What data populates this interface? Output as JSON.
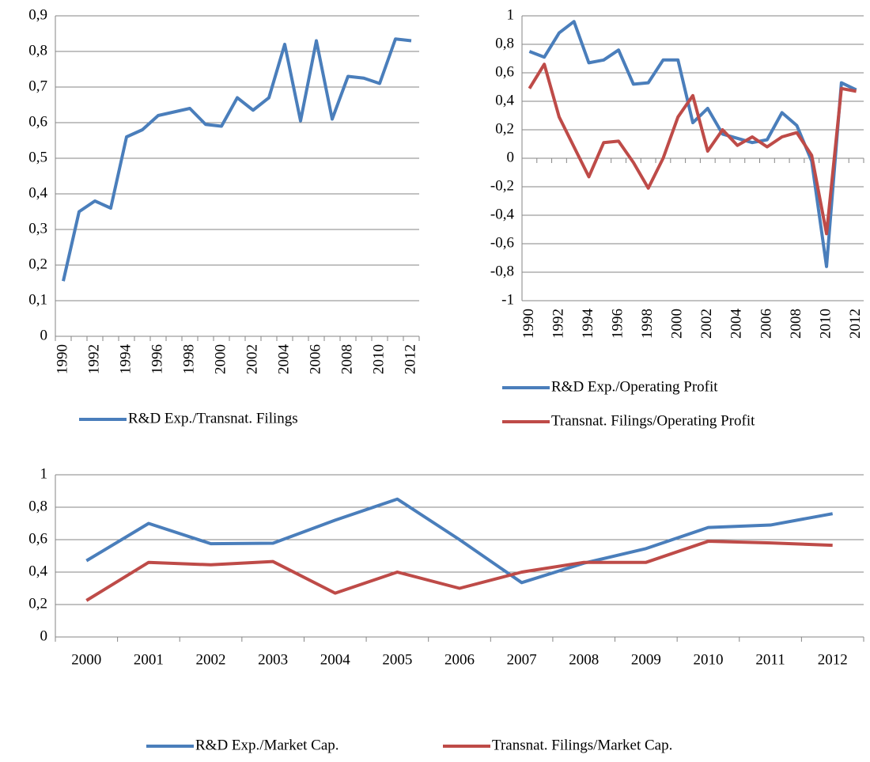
{
  "chart_data": [
    {
      "type": "line",
      "categories": [
        1990,
        null,
        1992,
        null,
        1994,
        null,
        1996,
        null,
        1998,
        null,
        2000,
        null,
        2002,
        null,
        2004,
        null,
        2006,
        null,
        2008,
        null,
        2010,
        null,
        2012
      ],
      "series": [
        {
          "name": "R&D Exp./Transnat. Filings",
          "color": "#4a7ebb",
          "values": [
            0.155,
            0.35,
            0.38,
            0.36,
            0.56,
            0.58,
            0.62,
            0.63,
            0.64,
            0.595,
            0.59,
            0.67,
            0.635,
            0.67,
            0.82,
            0.605,
            0.83,
            0.61,
            0.73,
            0.725,
            0.71,
            0.835,
            0.83
          ]
        }
      ],
      "ylim": [
        0,
        0.9
      ],
      "yticks": [
        0,
        {
          "value": 0.1,
          "label": "0,1"
        },
        {
          "value": 0.2,
          "label": "0,2"
        },
        {
          "value": 0.3,
          "label": "0,3"
        },
        {
          "value": 0.4,
          "label": "0,4"
        },
        {
          "value": 0.5,
          "label": "0,5"
        },
        {
          "value": 0.6,
          "label": "0,6"
        },
        {
          "value": 0.7,
          "label": "0,7"
        },
        {
          "value": 0.8,
          "label": "0,8"
        },
        {
          "value": 0.9,
          "label": "0,9"
        }
      ],
      "grid": true
    },
    {
      "type": "line",
      "categories": [
        1990,
        null,
        1992,
        null,
        1994,
        null,
        1996,
        null,
        1998,
        null,
        2000,
        null,
        2002,
        null,
        2004,
        null,
        2006,
        null,
        2008,
        null,
        2010,
        null,
        2012
      ],
      "series": [
        {
          "name": "R&D Exp./Operating Profit",
          "color": "#4a7ebb",
          "values": [
            0.75,
            0.71,
            0.88,
            0.96,
            0.67,
            0.69,
            0.76,
            0.52,
            0.53,
            0.69,
            0.69,
            0.25,
            0.35,
            0.17,
            0.14,
            0.11,
            0.13,
            0.32,
            0.23,
            -0.02,
            -0.76,
            0.53,
            0.48
          ]
        },
        {
          "name": "Transnat. Filings/Operating Profit",
          "color": "#be4b48",
          "values": [
            0.49,
            0.66,
            0.29,
            0.08,
            -0.13,
            0.11,
            0.12,
            -0.03,
            -0.21,
            0.0,
            0.29,
            0.44,
            0.05,
            0.2,
            0.09,
            0.15,
            0.08,
            0.15,
            0.18,
            0.02,
            -0.53,
            0.49,
            0.47
          ]
        }
      ],
      "ylim": [
        -1,
        1
      ],
      "yticks": [
        -1,
        {
          "value": -0.8,
          "label": "-0,8"
        },
        {
          "value": -0.6,
          "label": "-0,6"
        },
        {
          "value": -0.4,
          "label": "-0,4"
        },
        {
          "value": -0.2,
          "label": "-0,2"
        },
        0,
        {
          "value": 0.2,
          "label": "0,2"
        },
        {
          "value": 0.4,
          "label": "0,4"
        },
        {
          "value": 0.6,
          "label": "0,6"
        },
        {
          "value": 0.8,
          "label": "0,8"
        },
        1
      ],
      "grid": true
    },
    {
      "type": "line",
      "categories": [
        2000,
        2001,
        2002,
        2003,
        2004,
        2005,
        2006,
        2007,
        2008,
        2009,
        2010,
        2011,
        2012
      ],
      "series": [
        {
          "name": "R&D Exp./Market Cap.",
          "color": "#4a7ebb",
          "values": [
            0.47,
            0.7,
            0.575,
            0.578,
            0.72,
            0.85,
            0.6,
            0.335,
            0.455,
            0.545,
            0.675,
            0.69,
            0.76
          ]
        },
        {
          "name": "Transnat. Filings/Market Cap.",
          "color": "#be4b48",
          "values": [
            0.225,
            0.46,
            0.445,
            0.465,
            0.27,
            0.4,
            0.3,
            0.4,
            0.46,
            0.46,
            0.59,
            0.58,
            0.565
          ]
        }
      ],
      "ylim": [
        0,
        1
      ],
      "yticks": [
        0,
        {
          "value": 0.2,
          "label": "0,2"
        },
        {
          "value": 0.4,
          "label": "0,4"
        },
        {
          "value": 0.6,
          "label": "0,6"
        },
        {
          "value": 0.8,
          "label": "0,8"
        },
        1
      ],
      "grid": true
    }
  ]
}
